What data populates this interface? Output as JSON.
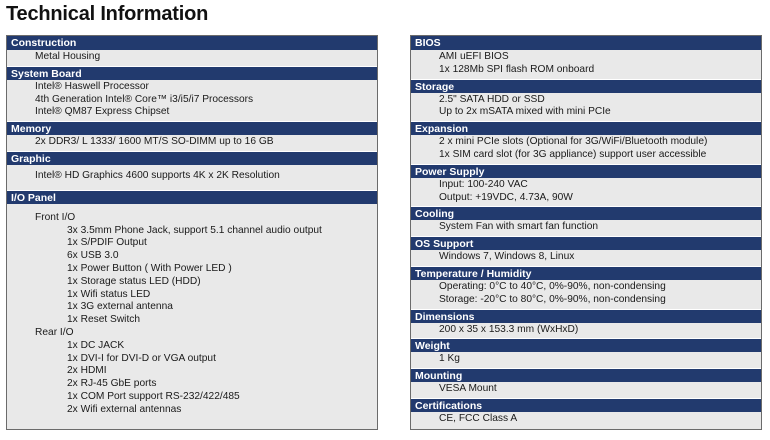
{
  "page_title": "Technical Information",
  "left_sections": [
    {
      "id": "construction",
      "title": "Construction",
      "body_class": "",
      "lines": [
        {
          "text": "Metal Housing",
          "cls": "ind1"
        }
      ]
    },
    {
      "id": "system-board",
      "title": "System Board",
      "body_class": "",
      "lines": [
        {
          "text": "Intel® Haswell Processor",
          "cls": "ind1"
        },
        {
          "text": "4th Generation Intel® Core™ i3/i5/i7 Processors",
          "cls": "ind1"
        },
        {
          "text": "Intel® QM87 Express Chipset",
          "cls": "ind1"
        }
      ]
    },
    {
      "id": "memory",
      "title": "Memory",
      "body_class": "",
      "lines": [
        {
          "text": "2x DDR3/ L 1333/ 1600 MT/S SO-DIMM up to 16 GB",
          "cls": "ind1"
        }
      ]
    },
    {
      "id": "graphic",
      "title": "Graphic",
      "body_class": "tall",
      "lines": [
        {
          "text": "Intel® HD Graphics 4600 supports 4K x 2K Resolution",
          "cls": "ind1"
        }
      ]
    },
    {
      "id": "io-panel",
      "title": "I/O Panel",
      "body_class": "io",
      "lines": [
        {
          "text": "Front I/O",
          "cls": "ind-sub"
        },
        {
          "text": "3x 3.5mm Phone Jack, support 5.1 channel audio output",
          "cls": "ind-item"
        },
        {
          "text": "1x S/PDIF Output",
          "cls": "ind-item"
        },
        {
          "text": "6x USB 3.0",
          "cls": "ind-item"
        },
        {
          "text": "1x Power Button ( With Power LED )",
          "cls": "ind-item"
        },
        {
          "text": "1x Storage status LED (HDD)",
          "cls": "ind-item"
        },
        {
          "text": "1x Wifi status LED",
          "cls": "ind-item"
        },
        {
          "text": "1x 3G external antenna",
          "cls": "ind-item"
        },
        {
          "text": "1x Reset Switch",
          "cls": "ind-item"
        },
        {
          "text": "Rear I/O",
          "cls": "ind-sub"
        },
        {
          "text": "1x DC JACK",
          "cls": "ind-item"
        },
        {
          "text": "1x DVI-I for DVI-D or VGA output",
          "cls": "ind-item"
        },
        {
          "text": "2x HDMI",
          "cls": "ind-item"
        },
        {
          "text": "2x RJ-45 GbE ports",
          "cls": "ind-item"
        },
        {
          "text": "1x COM Port support RS-232/422/485",
          "cls": "ind-item"
        },
        {
          "text": "2x Wifi external antennas",
          "cls": "ind-item"
        }
      ]
    }
  ],
  "right_sections": [
    {
      "id": "bios",
      "title": "BIOS",
      "body_class": "",
      "lines": [
        {
          "text": "AMI uEFI BIOS",
          "cls": "ind1"
        },
        {
          "text": "1x 128Mb SPI flash ROM onboard",
          "cls": "ind1"
        }
      ]
    },
    {
      "id": "storage",
      "title": "Storage",
      "body_class": "",
      "lines": [
        {
          "text": "2.5\" SATA HDD or SSD",
          "cls": "ind1"
        },
        {
          "text": "Up to 2x mSATA mixed with mini PCIe",
          "cls": "ind1"
        }
      ]
    },
    {
      "id": "expansion",
      "title": "Expansion",
      "body_class": "",
      "lines": [
        {
          "text": "2 x mini PCIe slots (Optional for 3G/WiFi/Bluetooth module)",
          "cls": "ind1"
        },
        {
          "text": "1x SIM card slot (for 3G appliance) support user accessible",
          "cls": "ind1"
        }
      ]
    },
    {
      "id": "power-supply",
      "title": "Power Supply",
      "body_class": "",
      "lines": [
        {
          "text": "Input: 100-240 VAC",
          "cls": "ind1"
        },
        {
          "text": "Output: +19VDC, 4.73A, 90W",
          "cls": "ind1"
        }
      ]
    },
    {
      "id": "cooling",
      "title": "Cooling",
      "body_class": "",
      "lines": [
        {
          "text": "System Fan with smart fan function",
          "cls": "ind1"
        }
      ]
    },
    {
      "id": "os-support",
      "title": "OS Support",
      "body_class": "",
      "lines": [
        {
          "text": "Windows 7, Windows 8, Linux",
          "cls": "ind1"
        }
      ]
    },
    {
      "id": "temperature-humidity",
      "title": "Temperature / Humidity",
      "body_class": "",
      "lines": [
        {
          "text": "Operating: 0°C to 40°C, 0%-90%, non-condensing",
          "cls": "ind1"
        },
        {
          "text": "Storage: -20°C to 80°C, 0%-90%, non-condensing",
          "cls": "ind1"
        }
      ]
    },
    {
      "id": "dimensions",
      "title": "Dimensions",
      "body_class": "",
      "lines": [
        {
          "text": "200 x 35 x 153.3 mm (WxHxD)",
          "cls": "ind1"
        }
      ]
    },
    {
      "id": "weight",
      "title": "Weight",
      "body_class": "",
      "lines": [
        {
          "text": "1 Kg",
          "cls": "ind1"
        }
      ]
    },
    {
      "id": "mounting",
      "title": "Mounting",
      "body_class": "",
      "lines": [
        {
          "text": "VESA Mount",
          "cls": "ind1"
        }
      ]
    },
    {
      "id": "certifications",
      "title": "Certifications",
      "body_class": "",
      "lines": [
        {
          "text": "CE, FCC Class A",
          "cls": "ind1"
        }
      ]
    }
  ],
  "colors": {
    "header_bg": "#223a6e",
    "panel_bg": "#e9e9e9",
    "border": "#6b6b6b"
  }
}
